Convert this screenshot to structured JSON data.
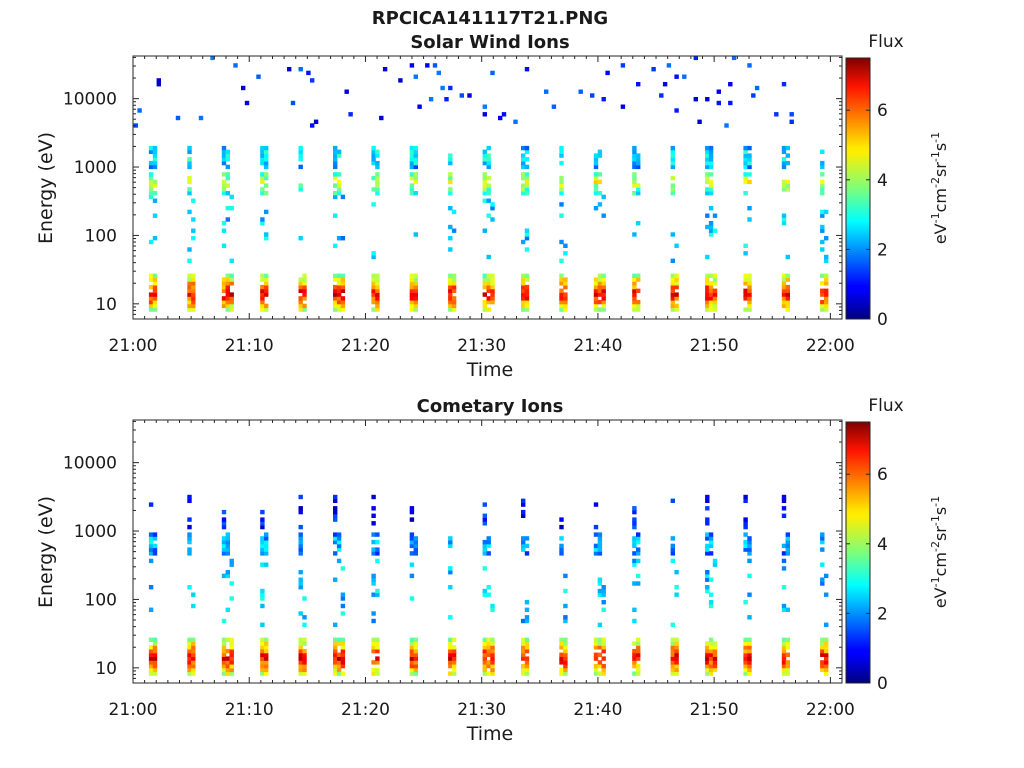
{
  "figure": {
    "title": "RPCICA141117T21.PNG"
  },
  "chart_data": [
    {
      "type": "heatmap",
      "title": "Solar Wind Ions",
      "xlabel": "Time",
      "ylabel": "Energy (eV)",
      "y_scale": "log",
      "x_range": [
        "21:00",
        "22:01"
      ],
      "ylim": [
        6,
        42000
      ],
      "xticks": [
        "21:00",
        "21:10",
        "21:20",
        "21:30",
        "21:40",
        "21:50",
        "22:00"
      ],
      "yticks": [
        "10",
        "100",
        "1000",
        "10000"
      ],
      "colorbar": {
        "title": "Flux",
        "label": "eV-1cm-2sr-1s-1",
        "range": [
          0,
          7.5
        ],
        "ticks": [
          "0",
          "2",
          "4",
          "6"
        ],
        "colormap": "jet"
      },
      "burst_period_min": 3.2,
      "burst_offset_min": 1.2,
      "features": [
        {
          "type": "solar wind peak",
          "energy_ev": 600,
          "flux": 4.5
        },
        {
          "type": "solar wind secondary",
          "energy_ev": 1400,
          "flux": 3.0
        },
        {
          "type": "low-energy band",
          "energy_ev": 14,
          "flux": 6.8
        },
        {
          "type": "sparse high-energy counts",
          "energy_ev": 15000,
          "flux": 1.2
        }
      ]
    },
    {
      "type": "heatmap",
      "title": "Cometary Ions",
      "xlabel": "Time",
      "ylabel": "Energy (eV)",
      "y_scale": "log",
      "x_range": [
        "21:00",
        "22:01"
      ],
      "ylim": [
        6,
        42000
      ],
      "xticks": [
        "21:00",
        "21:10",
        "21:20",
        "21:30",
        "21:40",
        "21:50",
        "22:00"
      ],
      "yticks": [
        "10",
        "100",
        "1000",
        "10000"
      ],
      "colorbar": {
        "title": "Flux",
        "label": "eV-1cm-2sr-1s-1",
        "range": [
          0,
          7.5
        ],
        "ticks": [
          "0",
          "2",
          "4",
          "6"
        ],
        "colormap": "jet"
      },
      "burst_period_min": 3.2,
      "burst_offset_min": 1.2,
      "features": [
        {
          "type": "low-energy band",
          "energy_ev": 14,
          "flux": 6.8
        },
        {
          "type": "mid-energy counts",
          "energy_ev": 650,
          "flux": 2.5
        },
        {
          "type": "high-energy streaks",
          "energy_ev": 2000,
          "flux": 1.0
        }
      ]
    }
  ]
}
